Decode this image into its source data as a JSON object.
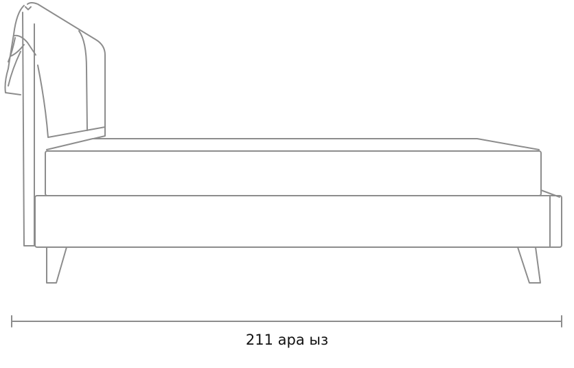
{
  "dimension": {
    "label": "211 ара ыз"
  },
  "colors": {
    "line": "#8c8c8c",
    "text": "#111111"
  }
}
